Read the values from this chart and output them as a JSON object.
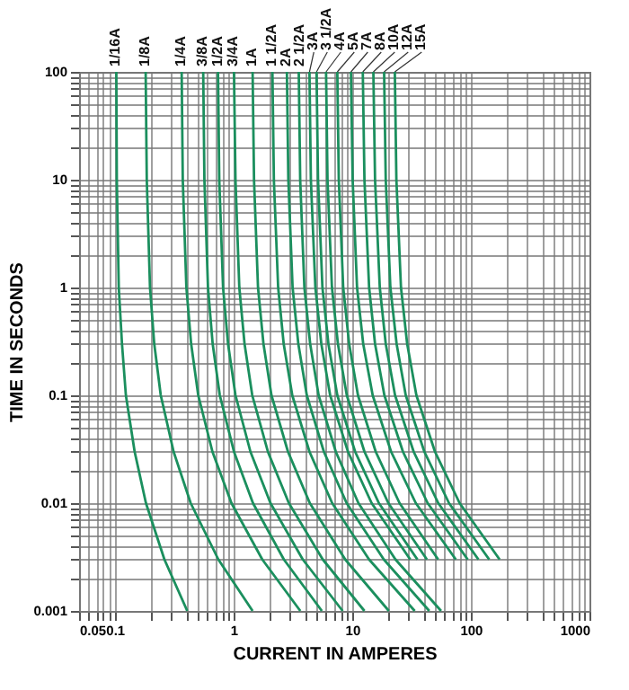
{
  "chart_data": {
    "type": "line",
    "xlabel": "CURRENT IN AMPERES",
    "ylabel": "TIME IN SECONDS",
    "log": "xy",
    "grid": true,
    "legend": false,
    "marker": "none",
    "line_style": "solid",
    "xlim": [
      0.05,
      1000
    ],
    "ylim": [
      0.001,
      100
    ],
    "xticks": [
      0.05,
      {
        "value": 0.06,
        "label": null
      },
      {
        "value": 0.07,
        "label": null
      },
      {
        "value": 0.08,
        "label": null
      },
      {
        "value": 0.09,
        "label": null
      },
      0.1,
      {
        "value": 0.2,
        "label": null
      },
      {
        "value": 0.3,
        "label": null
      },
      {
        "value": 0.4,
        "label": null
      },
      {
        "value": 0.5,
        "label": null
      },
      {
        "value": 0.6,
        "label": null
      },
      {
        "value": 0.7,
        "label": null
      },
      {
        "value": 0.8,
        "label": null
      },
      {
        "value": 0.9,
        "label": null
      },
      1,
      {
        "value": 2,
        "label": null
      },
      {
        "value": 3,
        "label": null
      },
      {
        "value": 4,
        "label": null
      },
      {
        "value": 5,
        "label": null
      },
      {
        "value": 6,
        "label": null
      },
      {
        "value": 7,
        "label": null
      },
      {
        "value": 8,
        "label": null
      },
      {
        "value": 9,
        "label": null
      },
      10,
      {
        "value": 20,
        "label": null
      },
      {
        "value": 30,
        "label": null
      },
      {
        "value": 40,
        "label": null
      },
      {
        "value": 50,
        "label": null
      },
      {
        "value": 60,
        "label": null
      },
      {
        "value": 70,
        "label": null
      },
      {
        "value": 80,
        "label": null
      },
      {
        "value": 90,
        "label": null
      },
      100,
      {
        "value": 200,
        "label": null
      },
      {
        "value": 300,
        "label": null
      },
      {
        "value": 400,
        "label": null
      },
      {
        "value": 500,
        "label": null
      },
      {
        "value": 600,
        "label": null
      },
      {
        "value": 700,
        "label": null
      },
      {
        "value": 800,
        "label": null
      },
      {
        "value": 900,
        "label": null
      },
      1000
    ],
    "yticks": [
      0.001,
      {
        "value": 0.002,
        "label": null
      },
      {
        "value": 0.003,
        "label": null
      },
      {
        "value": 0.004,
        "label": null
      },
      {
        "value": 0.005,
        "label": null
      },
      {
        "value": 0.006,
        "label": null
      },
      {
        "value": 0.007,
        "label": null
      },
      {
        "value": 0.008,
        "label": null
      },
      {
        "value": 0.009,
        "label": null
      },
      0.01,
      {
        "value": 0.02,
        "label": null
      },
      {
        "value": 0.03,
        "label": null
      },
      {
        "value": 0.04,
        "label": null
      },
      {
        "value": 0.05,
        "label": null
      },
      {
        "value": 0.06,
        "label": null
      },
      {
        "value": 0.07,
        "label": null
      },
      {
        "value": 0.08,
        "label": null
      },
      {
        "value": 0.09,
        "label": null
      },
      0.1,
      {
        "value": 0.2,
        "label": null
      },
      {
        "value": 0.3,
        "label": null
      },
      {
        "value": 0.4,
        "label": null
      },
      {
        "value": 0.5,
        "label": null
      },
      {
        "value": 0.6,
        "label": null
      },
      {
        "value": 0.7,
        "label": null
      },
      {
        "value": 0.8,
        "label": null
      },
      {
        "value": 0.9,
        "label": null
      },
      1,
      {
        "value": 2,
        "label": null
      },
      {
        "value": 3,
        "label": null
      },
      {
        "value": 4,
        "label": null
      },
      {
        "value": 5,
        "label": null
      },
      {
        "value": 6,
        "label": null
      },
      {
        "value": 7,
        "label": null
      },
      {
        "value": 8,
        "label": null
      },
      {
        "value": 9,
        "label": null
      },
      10,
      {
        "value": 20,
        "label": null
      },
      {
        "value": 30,
        "label": null
      },
      {
        "value": 40,
        "label": null
      },
      {
        "value": 50,
        "label": null
      },
      {
        "value": 60,
        "label": null
      },
      {
        "value": 70,
        "label": null
      },
      {
        "value": 80,
        "label": null
      },
      {
        "value": 90,
        "label": null
      },
      100
    ],
    "series": [
      {
        "name": "1/16A",
        "color": "#1b8f5e",
        "x": [
          0.103,
          0.104,
          0.108,
          0.115,
          0.124,
          0.147,
          0.183,
          0.262,
          0.408
        ],
        "values": [
          100,
          10,
          1,
          0.3,
          0.1,
          0.03,
          0.01,
          0.003,
          0.001
        ]
      },
      {
        "name": "1/8A",
        "color": "#1b8f5e",
        "x": [
          0.182,
          0.186,
          0.198,
          0.215,
          0.244,
          0.313,
          0.436,
          0.746,
          1.45
        ],
        "values": [
          100,
          10,
          1,
          0.3,
          0.1,
          0.03,
          0.01,
          0.003,
          0.001
        ]
      },
      {
        "name": "1/4A",
        "color": "#1b8f5e",
        "x": [
          0.366,
          0.374,
          0.401,
          0.44,
          0.505,
          0.665,
          0.962,
          1.75,
          3.66
        ],
        "values": [
          100,
          10,
          1,
          0.3,
          0.1,
          0.03,
          0.01,
          0.003,
          0.001
        ]
      },
      {
        "name": "3/8A",
        "color": "#1b8f5e",
        "x": [
          0.556,
          0.569,
          0.61,
          0.668,
          0.767,
          1.01,
          1.46,
          2.66,
          5.56
        ],
        "values": [
          100,
          10,
          1,
          0.3,
          0.1,
          0.03,
          0.01,
          0.003,
          0.001
        ]
      },
      {
        "name": "1/2A",
        "color": "#1b8f5e",
        "x": [
          0.741,
          0.759,
          0.817,
          0.9,
          1.04,
          1.39,
          2.05,
          3.84,
          8.32
        ],
        "values": [
          100,
          10,
          1,
          0.3,
          0.1,
          0.03,
          0.01,
          0.003,
          0.001
        ]
      },
      {
        "name": "3/4A",
        "color": "#1b8f5e",
        "x": [
          1.01,
          1.04,
          1.12,
          1.24,
          1.44,
          1.95,
          2.93,
          5.66,
          12.7
        ],
        "values": [
          100,
          10,
          1,
          0.3,
          0.1,
          0.03,
          0.01,
          0.003,
          0.001
        ]
      },
      {
        "name": "1A",
        "color": "#1b8f5e",
        "x": [
          1.45,
          1.49,
          1.61,
          1.79,
          2.09,
          2.88,
          4.4,
          8.75,
          20.4
        ],
        "values": [
          100,
          10,
          1,
          0.3,
          0.1,
          0.03,
          0.01,
          0.003,
          0.001
        ]
      },
      {
        "name": "1 1/2A",
        "color": "#1b8f5e",
        "x": [
          2.13,
          2.19,
          2.38,
          2.65,
          3.13,
          4.37,
          6.79,
          13.9,
          33.7
        ],
        "values": [
          100,
          10,
          1,
          0.3,
          0.1,
          0.03,
          0.01,
          0.003,
          0.001
        ]
      },
      {
        "name": "2A",
        "color": "#1b8f5e",
        "x": [
          2.82,
          2.9,
          3.15,
          3.52,
          4.15,
          5.78,
          8.99,
          18.5,
          44.7
        ],
        "values": [
          100,
          10,
          1,
          0.3,
          0.1,
          0.03,
          0.01,
          0.003,
          0.001
        ]
      },
      {
        "name": "2 1/2A",
        "color": "#1b8f5e",
        "x": [
          3.55,
          3.65,
          3.96,
          4.43,
          5.22,
          7.28,
          11.3,
          23.2,
          56.2
        ],
        "values": [
          100,
          10,
          1,
          0.3,
          0.1,
          0.03,
          0.01,
          0.003,
          0.001
        ]
      },
      {
        "name": "3A",
        "color": "#1b8f5e",
        "x": [
          4.37,
          4.49,
          4.9,
          5.5,
          6.53,
          9.23,
          14.6,
          30.9
        ],
        "values": [
          100,
          10,
          1,
          0.3,
          0.1,
          0.03,
          0.01,
          0.003
        ]
      },
      {
        "name": "3 1/2A",
        "color": "#1b8f5e",
        "x": [
          5.01,
          5.16,
          5.62,
          6.31,
          7.5,
          10.6,
          16.8,
          35.5
        ],
        "values": [
          100,
          10,
          1,
          0.3,
          0.1,
          0.03,
          0.01,
          0.003
        ]
      },
      {
        "name": "4A",
        "color": "#1b8f5e",
        "x": [
          6.03,
          6.2,
          6.76,
          7.59,
          9.02,
          12.7,
          20.2,
          42.7
        ],
        "values": [
          100,
          10,
          1,
          0.3,
          0.1,
          0.03,
          0.01,
          0.003
        ]
      },
      {
        "name": "5A",
        "color": "#1b8f5e",
        "x": [
          7.5,
          7.72,
          8.41,
          9.44,
          11.2,
          15.8,
          25.1,
          53.1
        ],
        "values": [
          100,
          10,
          1,
          0.3,
          0.1,
          0.03,
          0.01,
          0.003
        ]
      },
      {
        "name": "7A",
        "color": "#1b8f5e",
        "x": [
          9.77,
          10.1,
          11,
          12.4,
          14.9,
          21.3,
          34.4,
          74.8
        ],
        "values": [
          100,
          10,
          1,
          0.3,
          0.1,
          0.03,
          0.01,
          0.003
        ]
      },
      {
        "name": "8A",
        "color": "#1b8f5e",
        "x": [
          12.3,
          12.7,
          13.9,
          15.6,
          18.7,
          26.8,
          43.3,
          94.2
        ],
        "values": [
          100,
          10,
          1,
          0.3,
          0.1,
          0.03,
          0.01,
          0.003
        ]
      },
      {
        "name": "10A",
        "color": "#1b8f5e",
        "x": [
          15.1,
          15.6,
          17.1,
          19.2,
          23,
          33,
          53.2,
          116
        ],
        "values": [
          100,
          10,
          1,
          0.3,
          0.1,
          0.03,
          0.01,
          0.003
        ]
      },
      {
        "name": "12A",
        "color": "#1b8f5e",
        "x": [
          18.6,
          19.2,
          21,
          23.7,
          28.3,
          40.6,
          65.5,
          143
        ],
        "values": [
          100,
          10,
          1,
          0.3,
          0.1,
          0.03,
          0.01,
          0.003
        ]
      },
      {
        "name": "15A",
        "color": "#1b8f5e",
        "x": [
          22.9,
          23.6,
          25.8,
          29.1,
          34.8,
          49.9,
          80.5,
          175
        ],
        "values": [
          100,
          10,
          1,
          0.3,
          0.1,
          0.03,
          0.01,
          0.003
        ]
      }
    ]
  }
}
